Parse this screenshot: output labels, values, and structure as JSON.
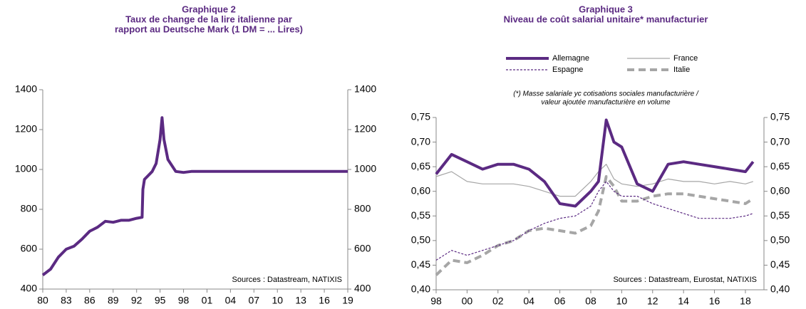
{
  "chart_data": [
    {
      "type": "line",
      "title": [
        "Graphique 2",
        "Taux de change de la lire italienne par",
        "rapport au Deutsche Mark (1 DM = ... Lires)"
      ],
      "annotation": "Sources : Datastream,  NATIXIS",
      "x": [
        1980,
        1981,
        1982,
        1983,
        1984,
        1985,
        1986,
        1987,
        1988,
        1989,
        1990,
        1991,
        1992,
        1992.7,
        1992.8,
        1993,
        1993.5,
        1994,
        1994.5,
        1995,
        1995.25,
        1995.5,
        1996,
        1997,
        1998,
        1999,
        2019
      ],
      "series": [
        {
          "color": "#5b2a82",
          "style": "solid",
          "weight": "bold",
          "values": [
            470,
            500,
            560,
            600,
            615,
            650,
            690,
            710,
            740,
            735,
            745,
            745,
            755,
            760,
            900,
            950,
            970,
            990,
            1030,
            1150,
            1260,
            1150,
            1050,
            990,
            985,
            990,
            990
          ]
        }
      ],
      "xlim": [
        1980,
        2019
      ],
      "xticks": [
        {
          "value": 1980,
          "label": "80"
        },
        {
          "value": 1983,
          "label": "83"
        },
        {
          "value": 1986,
          "label": "86"
        },
        {
          "value": 1989,
          "label": "89"
        },
        {
          "value": 1992,
          "label": "92"
        },
        {
          "value": 1995,
          "label": "95"
        },
        {
          "value": 1998,
          "label": "98"
        },
        {
          "value": 2001,
          "label": "01"
        },
        {
          "value": 2004,
          "label": "04"
        },
        {
          "value": 2007,
          "label": "07"
        },
        {
          "value": 2010,
          "label": "10"
        },
        {
          "value": 2013,
          "label": "13"
        },
        {
          "value": 2016,
          "label": "16"
        },
        {
          "value": 2019,
          "label": "19"
        }
      ],
      "ylim": [
        400,
        1400
      ],
      "yticks": [
        400,
        600,
        800,
        1000,
        1200,
        1400
      ],
      "y2lim": [
        400,
        1400
      ],
      "y2ticks": [
        400,
        600,
        800,
        1000,
        1200,
        1400
      ]
    },
    {
      "type": "line",
      "title": [
        "Graphique 3",
        "Niveau de coût salarial unitaire* manufacturier"
      ],
      "note": [
        "(*) Masse salariale yc cotisations  sociales manufacturière   /",
        "valeur ajoutée manufacturière   en volume"
      ],
      "annotation": "Sources : Datastream,  Eurostat,  NATIXIS",
      "x": [
        1998,
        1999,
        2000,
        2001,
        2002,
        2003,
        2004,
        2005,
        2006,
        2007,
        2008,
        2008.5,
        2009,
        2009.5,
        2010,
        2011,
        2012,
        2013,
        2014,
        2015,
        2016,
        2017,
        2018,
        2018.5
      ],
      "series": [
        {
          "name": "Allemagne",
          "color": "#5b2a82",
          "style": "solid",
          "weight": "bold",
          "values": [
            0.635,
            0.675,
            0.66,
            0.645,
            0.655,
            0.655,
            0.645,
            0.62,
            0.575,
            0.57,
            0.6,
            0.62,
            0.745,
            0.7,
            0.69,
            0.615,
            0.6,
            0.655,
            0.66,
            0.655,
            0.65,
            0.645,
            0.64,
            0.66
          ]
        },
        {
          "name": "France",
          "color": "#a6a6a6",
          "style": "solid",
          "weight": "thin",
          "values": [
            0.63,
            0.64,
            0.62,
            0.615,
            0.615,
            0.615,
            0.61,
            0.6,
            0.59,
            0.59,
            0.62,
            0.64,
            0.655,
            0.625,
            0.615,
            0.61,
            0.615,
            0.625,
            0.62,
            0.62,
            0.615,
            0.62,
            0.615,
            0.62
          ]
        },
        {
          "name": "Espagne",
          "color": "#5b2a82",
          "style": "dashed",
          "weight": "thin",
          "values": [
            0.46,
            0.48,
            0.47,
            0.48,
            0.49,
            0.5,
            0.52,
            0.535,
            0.545,
            0.55,
            0.57,
            0.6,
            0.62,
            0.6,
            0.59,
            0.59,
            0.575,
            0.565,
            0.555,
            0.545,
            0.545,
            0.545,
            0.55,
            0.555
          ]
        },
        {
          "name": "Italie",
          "color": "#a6a6a6",
          "style": "dashed",
          "weight": "bold",
          "values": [
            0.43,
            0.46,
            0.455,
            0.47,
            0.49,
            0.5,
            0.52,
            0.525,
            0.52,
            0.515,
            0.53,
            0.56,
            0.63,
            0.61,
            0.58,
            0.58,
            0.59,
            0.595,
            0.595,
            0.59,
            0.585,
            0.58,
            0.575,
            0.585
          ]
        }
      ],
      "xlim": [
        1998,
        2019.2
      ],
      "xticks": [
        {
          "value": 1998,
          "label": "98"
        },
        {
          "value": 2000,
          "label": "00"
        },
        {
          "value": 2002,
          "label": "02"
        },
        {
          "value": 2004,
          "label": "04"
        },
        {
          "value": 2006,
          "label": "06"
        },
        {
          "value": 2008,
          "label": "08"
        },
        {
          "value": 2010,
          "label": "10"
        },
        {
          "value": 2012,
          "label": "12"
        },
        {
          "value": 2014,
          "label": "14"
        },
        {
          "value": 2016,
          "label": "16"
        },
        {
          "value": 2018,
          "label": "18"
        }
      ],
      "ylim": [
        0.4,
        0.75
      ],
      "yticks": [
        {
          "value": 0.4,
          "label": "0,40"
        },
        {
          "value": 0.45,
          "label": "0,45"
        },
        {
          "value": 0.5,
          "label": "0,50"
        },
        {
          "value": 0.55,
          "label": "0,55"
        },
        {
          "value": 0.6,
          "label": "0,60"
        },
        {
          "value": 0.65,
          "label": "0,65"
        },
        {
          "value": 0.7,
          "label": "0,70"
        },
        {
          "value": 0.75,
          "label": "0,75"
        }
      ],
      "y2lim": [
        0.4,
        0.75
      ],
      "y2ticks": [
        {
          "value": 0.4,
          "label": "0,40"
        },
        {
          "value": 0.45,
          "label": "0,45"
        },
        {
          "value": 0.5,
          "label": "0,50"
        },
        {
          "value": 0.55,
          "label": "0,55"
        },
        {
          "value": 0.6,
          "label": "0,60"
        },
        {
          "value": 0.65,
          "label": "0,65"
        },
        {
          "value": 0.7,
          "label": "0,70"
        },
        {
          "value": 0.75,
          "label": "0,75"
        }
      ]
    }
  ]
}
